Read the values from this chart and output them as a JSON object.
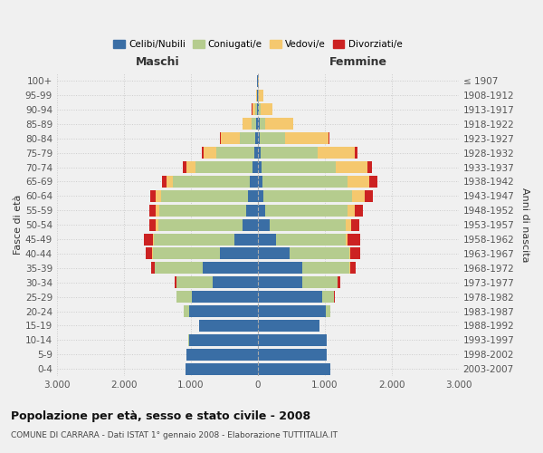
{
  "age_groups": [
    "0-4",
    "5-9",
    "10-14",
    "15-19",
    "20-24",
    "25-29",
    "30-34",
    "35-39",
    "40-44",
    "45-49",
    "50-54",
    "55-59",
    "60-64",
    "65-69",
    "70-74",
    "75-79",
    "80-84",
    "85-89",
    "90-94",
    "95-99",
    "100+"
  ],
  "birth_years": [
    "2003-2007",
    "1998-2002",
    "1993-1997",
    "1988-1992",
    "1983-1987",
    "1978-1982",
    "1973-1977",
    "1968-1972",
    "1963-1967",
    "1958-1962",
    "1953-1957",
    "1948-1952",
    "1943-1947",
    "1938-1942",
    "1933-1937",
    "1928-1932",
    "1923-1927",
    "1918-1922",
    "1913-1917",
    "1908-1912",
    "≤ 1907"
  ],
  "colors": {
    "celibi": "#3a6ea5",
    "coniugati": "#b5cc8e",
    "vedovi": "#f5c86e",
    "divorziati": "#cc2222"
  },
  "maschi": {
    "celibi": [
      1080,
      1060,
      1030,
      870,
      1020,
      980,
      680,
      820,
      570,
      350,
      230,
      170,
      150,
      120,
      80,
      55,
      40,
      25,
      15,
      8,
      5
    ],
    "coniugati": [
      0,
      0,
      3,
      8,
      80,
      230,
      530,
      720,
      1000,
      1200,
      1250,
      1300,
      1300,
      1150,
      850,
      560,
      230,
      70,
      25,
      8,
      2
    ],
    "vedovi": [
      0,
      0,
      0,
      0,
      0,
      0,
      0,
      4,
      8,
      15,
      45,
      55,
      70,
      90,
      140,
      190,
      280,
      130,
      45,
      15,
      3
    ],
    "divorziati": [
      0,
      0,
      0,
      0,
      3,
      8,
      25,
      55,
      90,
      140,
      90,
      90,
      90,
      70,
      45,
      25,
      10,
      8,
      3,
      0,
      0
    ]
  },
  "femmine": {
    "celibi": [
      1080,
      1030,
      1030,
      920,
      1020,
      960,
      670,
      660,
      470,
      270,
      180,
      110,
      85,
      65,
      50,
      40,
      35,
      25,
      15,
      8,
      3
    ],
    "coniugati": [
      0,
      0,
      3,
      8,
      65,
      180,
      520,
      710,
      900,
      1040,
      1140,
      1230,
      1330,
      1280,
      1120,
      850,
      370,
      80,
      25,
      8,
      2
    ],
    "vedovi": [
      0,
      0,
      0,
      0,
      0,
      0,
      3,
      8,
      15,
      35,
      70,
      110,
      180,
      320,
      470,
      560,
      650,
      420,
      175,
      65,
      15
    ],
    "divorziati": [
      0,
      0,
      0,
      0,
      5,
      15,
      45,
      85,
      140,
      190,
      120,
      120,
      120,
      120,
      70,
      45,
      15,
      8,
      3,
      0,
      0
    ]
  },
  "title": "Popolazione per età, sesso e stato civile - 2008",
  "subtitle": "COMUNE DI CARRARA - Dati ISTAT 1° gennaio 2008 - Elaborazione TUTTITALIA.IT",
  "xlabel_left": "Maschi",
  "xlabel_right": "Femmine",
  "ylabel_left": "Fasce di età",
  "ylabel_right": "Anni di nascita",
  "xlim": 3000,
  "background_color": "#f0f0f0",
  "legend_labels": [
    "Celibi/Nubili",
    "Coniugati/e",
    "Vedovi/e",
    "Divorziati/e"
  ]
}
